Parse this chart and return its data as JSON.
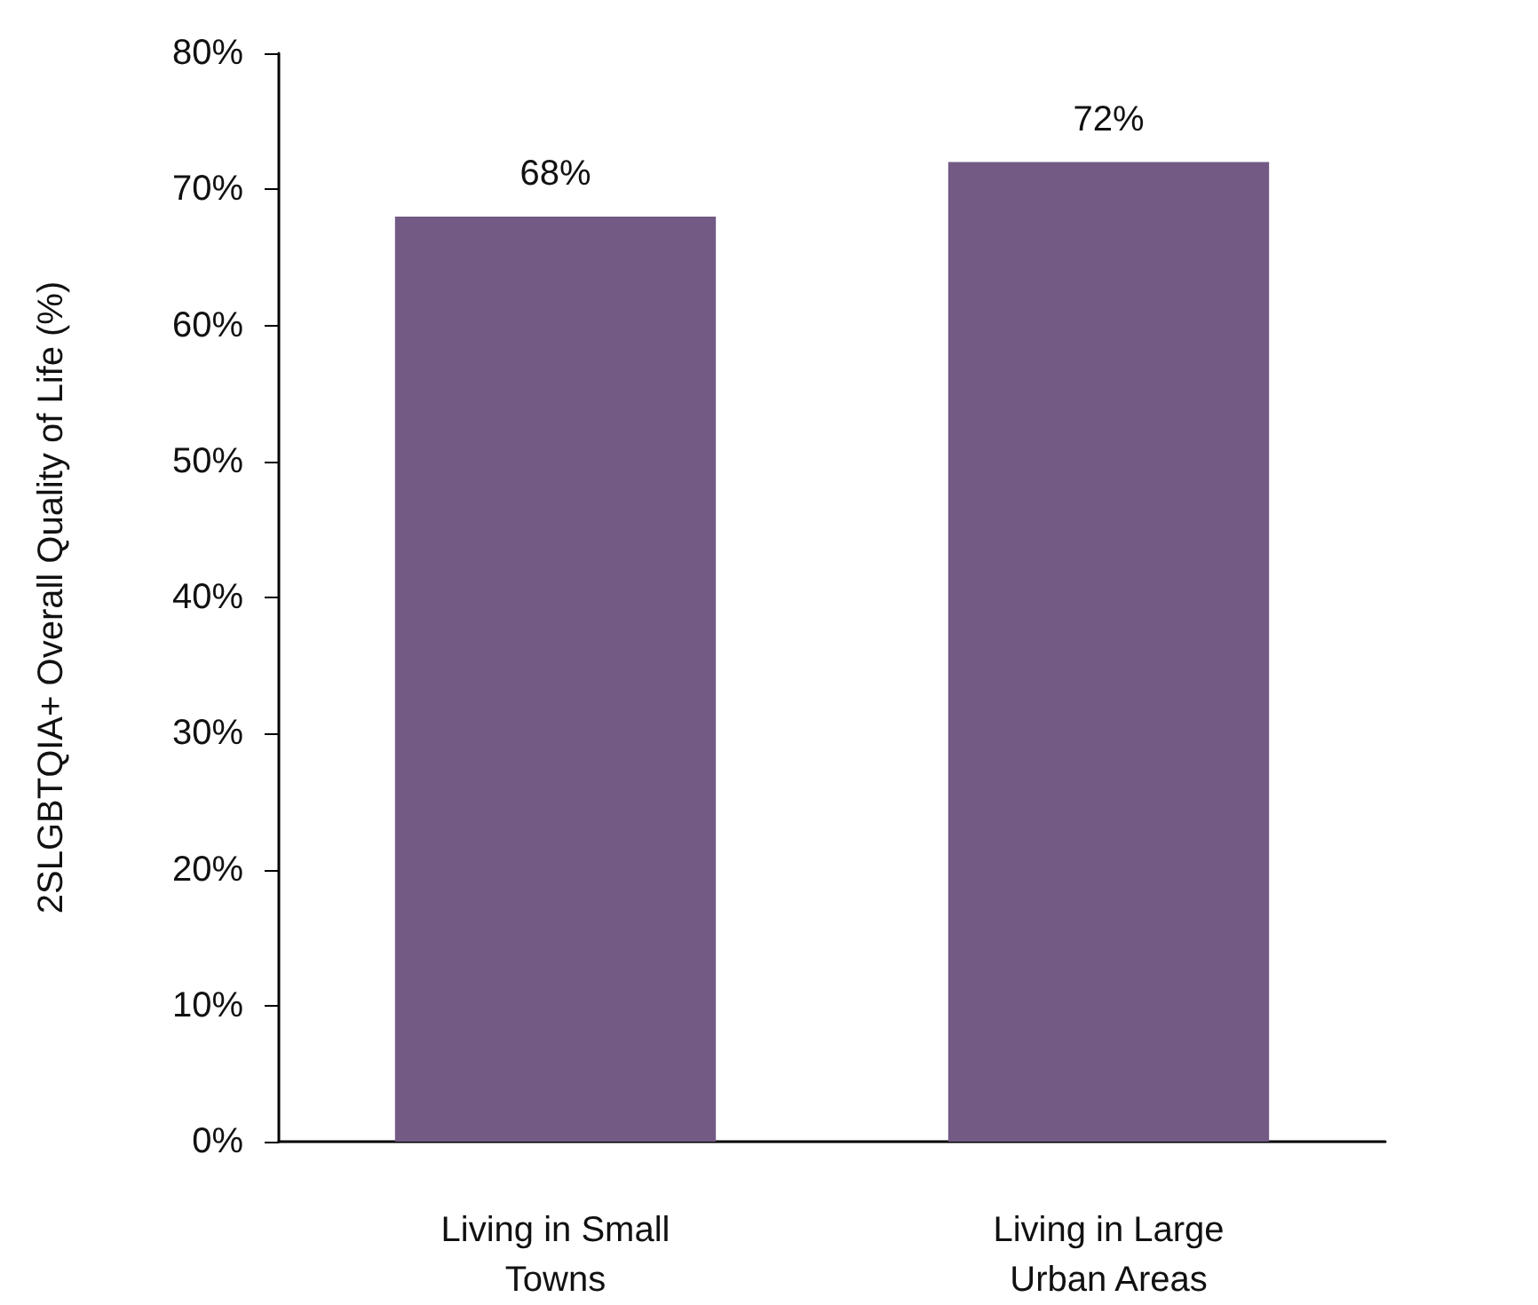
{
  "chart_data": {
    "type": "bar",
    "ylabel": "2SLGBTQIA+ Overall Quality of Life (%)",
    "categories": [
      "Living in Small\nTowns",
      "Living in Large\nUrban Areas"
    ],
    "values": [
      68,
      72
    ],
    "value_labels": [
      "68%",
      "72%"
    ],
    "colors": [
      "#735a85",
      "#735a85"
    ],
    "ylim": [
      0,
      80
    ],
    "yticks": [
      {
        "value": 0,
        "label": "0%"
      },
      {
        "value": 10,
        "label": "10%"
      },
      {
        "value": 20,
        "label": "20%"
      },
      {
        "value": 30,
        "label": "30%"
      },
      {
        "value": 40,
        "label": "40%"
      },
      {
        "value": 50,
        "label": "50%"
      },
      {
        "value": 60,
        "label": "60%"
      },
      {
        "value": 70,
        "label": "70%"
      },
      {
        "value": 80,
        "label": "80%"
      }
    ],
    "grid": false
  }
}
